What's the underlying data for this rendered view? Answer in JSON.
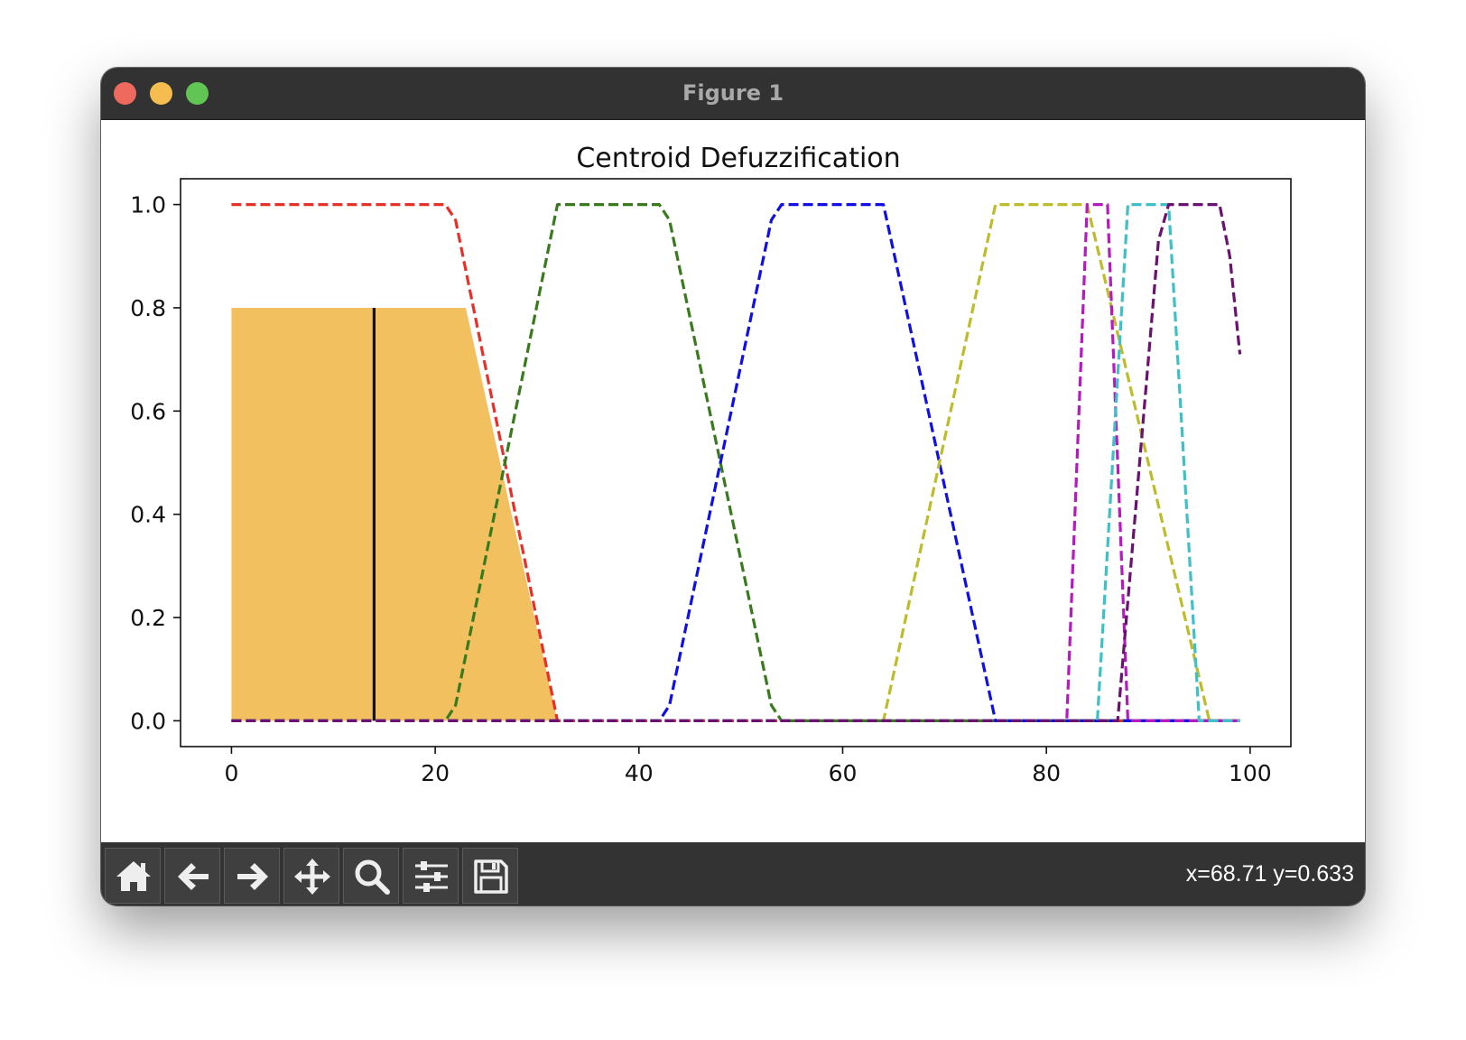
{
  "window": {
    "title": "Figure 1"
  },
  "toolbar": {
    "buttons": [
      {
        "name": "home",
        "icon": "home-icon"
      },
      {
        "name": "back",
        "icon": "arrow-left-icon"
      },
      {
        "name": "forward",
        "icon": "arrow-right-icon"
      },
      {
        "name": "pan",
        "icon": "move-icon"
      },
      {
        "name": "zoom",
        "icon": "magnifier-icon"
      },
      {
        "name": "configure-subplots",
        "icon": "sliders-icon"
      },
      {
        "name": "save",
        "icon": "floppy-disk-icon"
      }
    ],
    "coordinates": "x=68.71 y=0.633"
  },
  "chart_data": {
    "type": "line",
    "title": "Centroid Defuzzification",
    "xlabel": "",
    "ylabel": "",
    "xlim": [
      -5,
      104
    ],
    "ylim": [
      -0.05,
      1.05
    ],
    "xticks": [
      0,
      20,
      40,
      60,
      80,
      100
    ],
    "yticks": [
      0.0,
      0.2,
      0.4,
      0.6,
      0.8,
      1.0
    ],
    "ytick_labels": [
      "0.0",
      "0.2",
      "0.4",
      "0.6",
      "0.8",
      "1.0"
    ],
    "grid": false,
    "series": [
      {
        "color": "#e8302a",
        "style": "dashed",
        "points": [
          [
            0,
            1
          ],
          [
            21,
            1
          ],
          [
            22,
            0.97
          ],
          [
            32,
            0
          ],
          [
            99,
            0
          ]
        ]
      },
      {
        "color": "#3a7a1e",
        "style": "dashed",
        "points": [
          [
            0,
            0
          ],
          [
            21,
            0
          ],
          [
            22,
            0.03
          ],
          [
            32,
            1
          ],
          [
            42,
            1
          ],
          [
            43,
            0.97
          ],
          [
            53,
            0.03
          ],
          [
            54,
            0
          ],
          [
            99,
            0
          ]
        ]
      },
      {
        "color": "#1010e6",
        "style": "dashed",
        "points": [
          [
            0,
            0
          ],
          [
            42,
            0
          ],
          [
            43,
            0.03
          ],
          [
            53,
            0.97
          ],
          [
            54,
            1
          ],
          [
            64,
            1
          ],
          [
            75,
            0
          ],
          [
            99,
            0
          ]
        ]
      },
      {
        "color": "#bcbc2c",
        "style": "dashed",
        "points": [
          [
            0,
            0
          ],
          [
            64,
            0
          ],
          [
            75,
            1
          ],
          [
            84,
            1
          ],
          [
            96,
            0
          ],
          [
            99,
            0
          ]
        ]
      },
      {
        "color": "#b41bbf",
        "style": "dashed",
        "points": [
          [
            0,
            0
          ],
          [
            82,
            0
          ],
          [
            84,
            1
          ],
          [
            86,
            1
          ],
          [
            88,
            0
          ],
          [
            99,
            0
          ]
        ]
      },
      {
        "color": "#3fbfc6",
        "style": "dashed",
        "points": [
          [
            0,
            0
          ],
          [
            85,
            0
          ],
          [
            88,
            1
          ],
          [
            92,
            1
          ],
          [
            95,
            0
          ],
          [
            99,
            0
          ]
        ]
      },
      {
        "color": "#6a126f",
        "style": "dashed",
        "points": [
          [
            0,
            0
          ],
          [
            87,
            0
          ],
          [
            91,
            0.93
          ],
          [
            92,
            1
          ],
          [
            97,
            1
          ],
          [
            98,
            0.9
          ],
          [
            99,
            0.71
          ]
        ]
      }
    ],
    "filled_area": {
      "color": "#f3c05f",
      "points": [
        [
          0,
          0
        ],
        [
          0,
          0.8
        ],
        [
          23,
          0.8
        ],
        [
          32,
          0
        ],
        [
          0,
          0
        ]
      ]
    },
    "centroid": {
      "x": 14,
      "y_range": [
        0,
        0.8
      ],
      "color": "#111111"
    }
  }
}
